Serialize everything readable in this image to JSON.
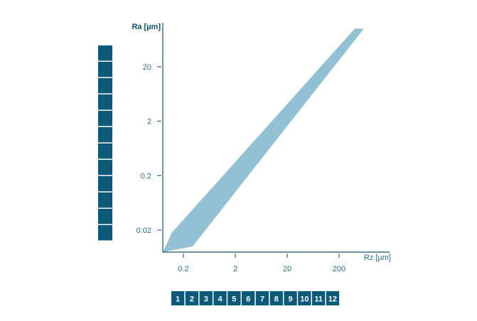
{
  "chart_data": {
    "type": "area",
    "title": "",
    "xlabel": "Rz [µm]",
    "ylabel": "Ra [µm]",
    "x_scale": "log",
    "y_scale": "log",
    "xlim": [
      0.1,
      600
    ],
    "ylim": [
      0.01,
      100
    ],
    "x_ticks": [
      {
        "value": 0.2,
        "label": "0.2"
      },
      {
        "value": 2,
        "label": "2"
      },
      {
        "value": 20,
        "label": "20"
      },
      {
        "value": 200,
        "label": "200"
      }
    ],
    "y_ticks": [
      {
        "value": 0.02,
        "label": "0.02"
      },
      {
        "value": 0.2,
        "label": "0.2"
      },
      {
        "value": 2,
        "label": "2"
      },
      {
        "value": 20,
        "label": "20"
      }
    ],
    "band": {
      "upper": [
        {
          "x": 0.12,
          "y": 0.018
        },
        {
          "x": 400,
          "y": 100
        }
      ],
      "lower": [
        {
          "x": 0.3,
          "y": 0.01
        },
        {
          "x": 600,
          "y": 100
        }
      ]
    },
    "grid": false,
    "colors": {
      "band": "#93c1d4",
      "axis": "#1a4f68",
      "tick_text": "#2b6f8c",
      "box": "#0b5a7a",
      "box_text": "#ffffff"
    },
    "y_grade_boxes": [
      "",
      "",
      "",
      "",
      "",
      "",
      "",
      "",
      "",
      "",
      "",
      ""
    ],
    "x_grade_boxes": [
      "1",
      "2",
      "3",
      "4",
      "5",
      "6",
      "7",
      "8",
      "9",
      "10",
      "11",
      "12"
    ]
  }
}
